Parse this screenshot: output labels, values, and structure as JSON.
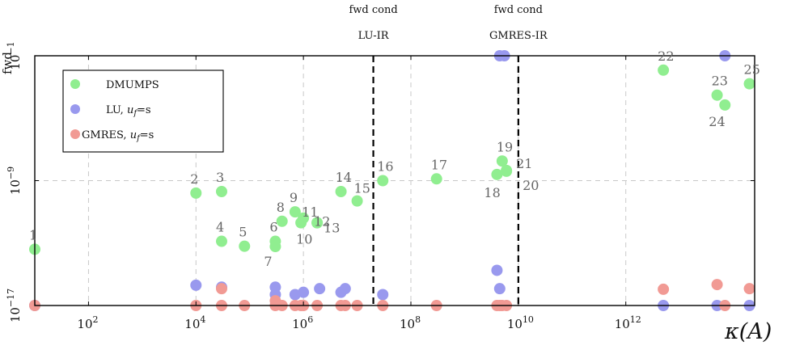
{
  "chart_data": {
    "type": "scatter",
    "title": "",
    "xlabel": "κ(A)",
    "ylabel": "fwd",
    "xscale": "log",
    "yscale": "log",
    "xlim": [
      10,
      250000000000000.0
    ],
    "ylim": [
      1e-17,
      0.1
    ],
    "grid": true,
    "legend_position": "top-left",
    "x_ticks": [
      {
        "value": 100,
        "base": "10",
        "exp": "2"
      },
      {
        "value": 10000,
        "base": "10",
        "exp": "4"
      },
      {
        "value": 1000000,
        "base": "10",
        "exp": "6"
      },
      {
        "value": 100000000,
        "base": "10",
        "exp": "8"
      },
      {
        "value": 10000000000,
        "base": "10",
        "exp": "10"
      },
      {
        "value": 1000000000000,
        "base": "10",
        "exp": "12"
      }
    ],
    "y_ticks": [
      {
        "value": 1e-17,
        "base": "10",
        "exp": "−17"
      },
      {
        "value": 1e-09,
        "base": "10",
        "exp": "−9"
      },
      {
        "value": 0.1,
        "base": "10",
        "exp": "−1"
      }
    ],
    "vlines": [
      {
        "x": 20000000,
        "label_top": "fwd cond",
        "label_bottom": "LU-IR"
      },
      {
        "x": 10000000000,
        "label_top": "fwd cond",
        "label_bottom": "GMRES-IR"
      }
    ],
    "series": [
      {
        "name": "DMUMPS",
        "color": "#90ee90",
        "points": [
          {
            "x": 10,
            "y": 4e-14,
            "label": "1"
          },
          {
            "x": 10000,
            "y": 1.6e-10,
            "label": "2"
          },
          {
            "x": 30000,
            "y": 2e-10,
            "label": "3"
          },
          {
            "x": 30000,
            "y": 1.3e-13,
            "label": "4"
          },
          {
            "x": 80000,
            "y": 6.3e-14,
            "label": "5"
          },
          {
            "x": 300000,
            "y": 1.3e-13,
            "label": "6"
          },
          {
            "x": 300000,
            "y": 6e-14,
            "label": "7"
          },
          {
            "x": 400000,
            "y": 2.5e-12,
            "label": "8"
          },
          {
            "x": 700000,
            "y": 1e-11,
            "label": "9"
          },
          {
            "x": 900000,
            "y": 2e-12,
            "label": "10"
          },
          {
            "x": 1000000,
            "y": 4e-12,
            "label": "11"
          },
          {
            "x": 1800000,
            "y": 2e-12,
            "label": "12"
          },
          {
            "x": 1800000,
            "y": 2e-12,
            "label": "13"
          },
          {
            "x": 5000000,
            "y": 2e-10,
            "label": "14"
          },
          {
            "x": 10000000,
            "y": 5e-11,
            "label": "15"
          },
          {
            "x": 30000000,
            "y": 1e-09,
            "label": "16"
          },
          {
            "x": 300000000,
            "y": 1.3e-09,
            "label": "17"
          },
          {
            "x": 4000000000,
            "y": 2.5e-09,
            "label": "18"
          },
          {
            "x": 5000000000,
            "y": 1.8e-08,
            "label": "19"
          },
          {
            "x": 6000000000,
            "y": 4.5e-09,
            "label": "20"
          },
          {
            "x": 6000000000,
            "y": 4e-09,
            "label": "21"
          },
          {
            "x": 5000000000000,
            "y": 0.012,
            "label": "22"
          },
          {
            "x": 50000000000000,
            "y": 0.0003,
            "label": "23"
          },
          {
            "x": 70000000000000,
            "y": 7e-05,
            "label": "24"
          },
          {
            "x": 200000000000000,
            "y": 0.0016,
            "label": "25"
          }
        ]
      },
      {
        "name": "LU, u_f=s",
        "name_prefix": "LU, ",
        "subscript_var": "u",
        "subscript": "f",
        "name_suffix": "=s",
        "color": "#9999ee",
        "points": [
          {
            "x": 10,
            "y": 1e-17
          },
          {
            "x": 10000,
            "y": 2e-16
          },
          {
            "x": 30000,
            "y": 1.5e-16
          },
          {
            "x": 300000,
            "y": 1.5e-16
          },
          {
            "x": 300000,
            "y": 5e-17
          },
          {
            "x": 700000,
            "y": 5e-17
          },
          {
            "x": 1000000,
            "y": 7e-17
          },
          {
            "x": 2000000,
            "y": 1.2e-16
          },
          {
            "x": 5000000,
            "y": 7e-17
          },
          {
            "x": 6000000,
            "y": 1.2e-16
          },
          {
            "x": 30000000,
            "y": 5e-17
          },
          {
            "x": 4000000000,
            "y": 1.8e-15
          },
          {
            "x": 4500000000,
            "y": 1.2e-16
          },
          {
            "x": 4500000000,
            "y": 0.1
          },
          {
            "x": 5500000000,
            "y": 0.1
          },
          {
            "x": 5000000000000,
            "y": 1e-17
          },
          {
            "x": 50000000000000,
            "y": 1e-17
          },
          {
            "x": 70000000000000,
            "y": 0.1
          },
          {
            "x": 200000000000000,
            "y": 1e-17
          }
        ]
      },
      {
        "name": "GMRES, u_f=s",
        "name_prefix": "GMRES, ",
        "subscript_var": "u",
        "subscript": "f",
        "name_suffix": "=s",
        "color": "#f19a94",
        "points": [
          {
            "x": 10,
            "y": 1e-17
          },
          {
            "x": 10000,
            "y": 1e-17
          },
          {
            "x": 30000,
            "y": 1e-17
          },
          {
            "x": 30000,
            "y": 1.2e-16
          },
          {
            "x": 80000,
            "y": 1e-17
          },
          {
            "x": 300000,
            "y": 1e-17
          },
          {
            "x": 300000,
            "y": 2e-17
          },
          {
            "x": 400000,
            "y": 1e-17
          },
          {
            "x": 700000,
            "y": 1e-17
          },
          {
            "x": 900000,
            "y": 1e-17
          },
          {
            "x": 1000000,
            "y": 1e-17
          },
          {
            "x": 1800000,
            "y": 1e-17
          },
          {
            "x": 5000000,
            "y": 1e-17
          },
          {
            "x": 6000000,
            "y": 1e-17
          },
          {
            "x": 10000000,
            "y": 1e-17
          },
          {
            "x": 30000000,
            "y": 1e-17
          },
          {
            "x": 300000000,
            "y": 1e-17
          },
          {
            "x": 4000000000,
            "y": 1e-17
          },
          {
            "x": 4500000000,
            "y": 1e-17
          },
          {
            "x": 5000000000,
            "y": 1e-17
          },
          {
            "x": 6000000000,
            "y": 1e-17
          },
          {
            "x": 5000000000000,
            "y": 1.1e-16
          },
          {
            "x": 50000000000000,
            "y": 2.2e-16
          },
          {
            "x": 70000000000000,
            "y": 1e-17
          },
          {
            "x": 200000000000000,
            "y": 1.2e-16
          }
        ]
      }
    ]
  }
}
